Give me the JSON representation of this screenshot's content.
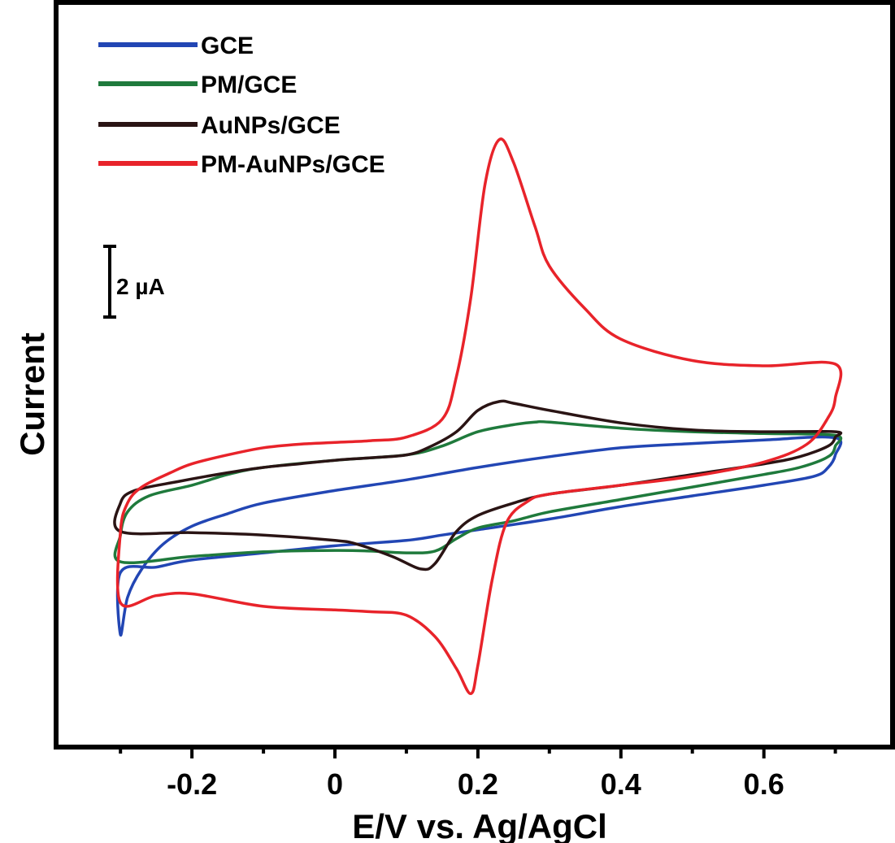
{
  "chart_data": {
    "type": "line",
    "title": "",
    "xlabel": "E/V vs. Ag/AgCl",
    "ylabel": "Current",
    "xlim": [
      -0.39,
      0.78
    ],
    "ylim": [
      -8.9,
      12.0
    ],
    "x_ticks": [
      -0.2,
      0,
      0.2,
      0.4,
      0.6
    ],
    "x_tick_labels": [
      "-0.2",
      "0",
      "0.2",
      "0.4",
      "0.6"
    ],
    "y_ticks_shown": false,
    "legend_position": "top-left",
    "scale_bar": {
      "label": "2 µA",
      "value": 2
    },
    "series": [
      {
        "name": "GCE",
        "color": "#2246b4",
        "points": [
          [
            -0.3,
            -5.75
          ],
          [
            -0.29,
            -4.7
          ],
          [
            -0.27,
            -3.9
          ],
          [
            -0.24,
            -3.2
          ],
          [
            -0.2,
            -2.7
          ],
          [
            -0.15,
            -2.35
          ],
          [
            -0.1,
            -2.05
          ],
          [
            0.0,
            -1.7
          ],
          [
            0.1,
            -1.4
          ],
          [
            0.2,
            -1.05
          ],
          [
            0.3,
            -0.75
          ],
          [
            0.4,
            -0.5
          ],
          [
            0.5,
            -0.38
          ],
          [
            0.6,
            -0.28
          ],
          [
            0.7,
            -0.22
          ],
          [
            0.7,
            -0.7
          ],
          [
            0.69,
            -1.05
          ],
          [
            0.67,
            -1.3
          ],
          [
            0.6,
            -1.55
          ],
          [
            0.5,
            -1.85
          ],
          [
            0.4,
            -2.15
          ],
          [
            0.3,
            -2.5
          ],
          [
            0.2,
            -2.8
          ],
          [
            0.15,
            -2.95
          ],
          [
            0.1,
            -3.1
          ],
          [
            0.0,
            -3.25
          ],
          [
            -0.1,
            -3.45
          ],
          [
            -0.2,
            -3.65
          ],
          [
            -0.25,
            -3.85
          ],
          [
            -0.3,
            -4.0
          ]
        ]
      },
      {
        "name": "PM/GCE",
        "color": "#1f7a3c",
        "points": [
          [
            -0.3,
            -2.95
          ],
          [
            -0.29,
            -2.3
          ],
          [
            -0.26,
            -1.85
          ],
          [
            -0.2,
            -1.55
          ],
          [
            -0.15,
            -1.25
          ],
          [
            -0.1,
            -1.05
          ],
          [
            0.0,
            -0.85
          ],
          [
            0.1,
            -0.7
          ],
          [
            0.15,
            -0.45
          ],
          [
            0.2,
            -0.05
          ],
          [
            0.25,
            0.15
          ],
          [
            0.28,
            0.22
          ],
          [
            0.3,
            0.22
          ],
          [
            0.4,
            0.05
          ],
          [
            0.5,
            -0.05
          ],
          [
            0.6,
            -0.1
          ],
          [
            0.7,
            -0.15
          ],
          [
            0.7,
            -0.45
          ],
          [
            0.69,
            -0.75
          ],
          [
            0.65,
            -1.05
          ],
          [
            0.6,
            -1.25
          ],
          [
            0.5,
            -1.6
          ],
          [
            0.4,
            -1.95
          ],
          [
            0.3,
            -2.3
          ],
          [
            0.25,
            -2.55
          ],
          [
            0.2,
            -2.75
          ],
          [
            0.17,
            -3.05
          ],
          [
            0.14,
            -3.4
          ],
          [
            0.1,
            -3.45
          ],
          [
            0.05,
            -3.4
          ],
          [
            0.0,
            -3.38
          ],
          [
            -0.1,
            -3.42
          ],
          [
            -0.2,
            -3.55
          ],
          [
            -0.3,
            -3.7
          ]
        ]
      },
      {
        "name": "AuNPs/GCE",
        "color": "#2a1414",
        "points": [
          [
            -0.3,
            -2.05
          ],
          [
            -0.28,
            -1.7
          ],
          [
            -0.22,
            -1.45
          ],
          [
            -0.15,
            -1.2
          ],
          [
            -0.1,
            -1.05
          ],
          [
            -0.05,
            -0.95
          ],
          [
            0.0,
            -0.85
          ],
          [
            0.05,
            -0.78
          ],
          [
            0.1,
            -0.7
          ],
          [
            0.13,
            -0.5
          ],
          [
            0.17,
            -0.05
          ],
          [
            0.2,
            0.55
          ],
          [
            0.23,
            0.8
          ],
          [
            0.25,
            0.75
          ],
          [
            0.3,
            0.55
          ],
          [
            0.4,
            0.2
          ],
          [
            0.5,
            -0.0
          ],
          [
            0.6,
            -0.05
          ],
          [
            0.7,
            -0.05
          ],
          [
            0.7,
            -0.2
          ],
          [
            0.69,
            -0.45
          ],
          [
            0.65,
            -0.75
          ],
          [
            0.6,
            -0.95
          ],
          [
            0.5,
            -1.25
          ],
          [
            0.4,
            -1.55
          ],
          [
            0.3,
            -1.8
          ],
          [
            0.25,
            -2.05
          ],
          [
            0.2,
            -2.4
          ],
          [
            0.17,
            -2.85
          ],
          [
            0.14,
            -3.75
          ],
          [
            0.12,
            -3.9
          ],
          [
            0.08,
            -3.55
          ],
          [
            0.03,
            -3.2
          ],
          [
            0.0,
            -3.1
          ],
          [
            -0.1,
            -2.95
          ],
          [
            -0.2,
            -2.88
          ],
          [
            -0.3,
            -2.85
          ]
        ]
      },
      {
        "name": "PM-AuNPs/GCE",
        "color": "#e8232a",
        "points": [
          [
            -0.3,
            -2.85
          ],
          [
            -0.29,
            -2.05
          ],
          [
            -0.27,
            -1.6
          ],
          [
            -0.23,
            -1.2
          ],
          [
            -0.2,
            -0.95
          ],
          [
            -0.15,
            -0.7
          ],
          [
            -0.1,
            -0.5
          ],
          [
            -0.05,
            -0.4
          ],
          [
            0.0,
            -0.35
          ],
          [
            0.05,
            -0.3
          ],
          [
            0.1,
            -0.2
          ],
          [
            0.15,
            0.3
          ],
          [
            0.17,
            1.5
          ],
          [
            0.19,
            3.7
          ],
          [
            0.21,
            6.9
          ],
          [
            0.23,
            8.15
          ],
          [
            0.25,
            7.5
          ],
          [
            0.28,
            5.7
          ],
          [
            0.3,
            4.6
          ],
          [
            0.35,
            3.4
          ],
          [
            0.4,
            2.55
          ],
          [
            0.5,
            1.95
          ],
          [
            0.6,
            1.8
          ],
          [
            0.7,
            1.85
          ],
          [
            0.7,
            0.9
          ],
          [
            0.69,
            0.35
          ],
          [
            0.66,
            -0.4
          ],
          [
            0.6,
            -0.9
          ],
          [
            0.5,
            -1.3
          ],
          [
            0.4,
            -1.55
          ],
          [
            0.3,
            -1.8
          ],
          [
            0.27,
            -2.0
          ],
          [
            0.24,
            -2.6
          ],
          [
            0.22,
            -4.2
          ],
          [
            0.2,
            -6.6
          ],
          [
            0.19,
            -7.4
          ],
          [
            0.17,
            -6.7
          ],
          [
            0.14,
            -5.8
          ],
          [
            0.1,
            -5.2
          ],
          [
            0.05,
            -5.1
          ],
          [
            0.0,
            -5.05
          ],
          [
            -0.1,
            -4.95
          ],
          [
            -0.2,
            -4.6
          ],
          [
            -0.25,
            -4.65
          ],
          [
            -0.3,
            -4.85
          ]
        ]
      }
    ]
  }
}
